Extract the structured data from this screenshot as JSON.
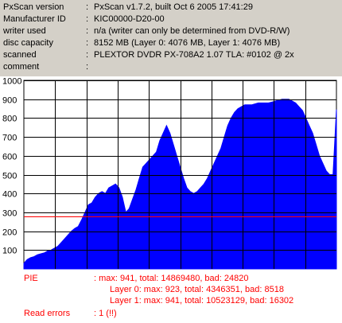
{
  "info": [
    {
      "key": "PxScan version",
      "value": "PxScan v1.7.2, built Oct  6 2005 17:41:29"
    },
    {
      "key": "Manufacturer ID",
      "value": "KIC00000-D20-00"
    },
    {
      "key": "writer used",
      "value": "n/a (writer can only be determined from DVD-R/W)"
    },
    {
      "key": "disc capacity",
      "value": "8152 MB (Layer 0: 4076 MB,  Layer 1: 4076 MB)"
    },
    {
      "key": "scanned",
      "value": "PLEXTOR DVDR PX-708A2 1.07 TLA: #0102 @ 2x"
    },
    {
      "key": "comment",
      "value": ""
    }
  ],
  "separator": ":",
  "chart_data": {
    "type": "area",
    "title": "",
    "xlabel": "",
    "ylabel": "",
    "ylim": [
      0,
      1000
    ],
    "yticks": [
      "100",
      "200",
      "300",
      "400",
      "500",
      "600",
      "700",
      "800",
      "900",
      "1000"
    ],
    "vertical_gridlines": 10,
    "grid": true,
    "fill_color": "#0000ff",
    "threshold_line": {
      "value": 280,
      "color": "#ff0000"
    },
    "series": [
      {
        "values": [
          30,
          50,
          60,
          65,
          75,
          80,
          85,
          95,
          100,
          110,
          120,
          140,
          160,
          180,
          200,
          215,
          225,
          260,
          300,
          340,
          350,
          380,
          400,
          410,
          400,
          430,
          440,
          450,
          430,
          380,
          300,
          320,
          370,
          420,
          480,
          540,
          560,
          580,
          600,
          620,
          680,
          720,
          760,
          720,
          660,
          600,
          540,
          480,
          430,
          410,
          400,
          410,
          430,
          450,
          480,
          520,
          560,
          600,
          640,
          700,
          760,
          800,
          830,
          850,
          860,
          870,
          870,
          870,
          875,
          880,
          880,
          880,
          880,
          885,
          890,
          895,
          900,
          900,
          900,
          890,
          880,
          860,
          840,
          800,
          760,
          720,
          660,
          600,
          560,
          520,
          500,
          500,
          845
        ]
      }
    ]
  },
  "stats": {
    "pie_label": "PIE",
    "pie_total": ": max: 941, total: 14869480, bad: 24820",
    "layer0": "Layer 0: max: 923, total: 4346351, bad: 8518",
    "layer1": "Layer 1: max: 941, total: 10523129, bad: 16302",
    "read_label": "Read errors",
    "read_value": ": 1 (!!)"
  }
}
